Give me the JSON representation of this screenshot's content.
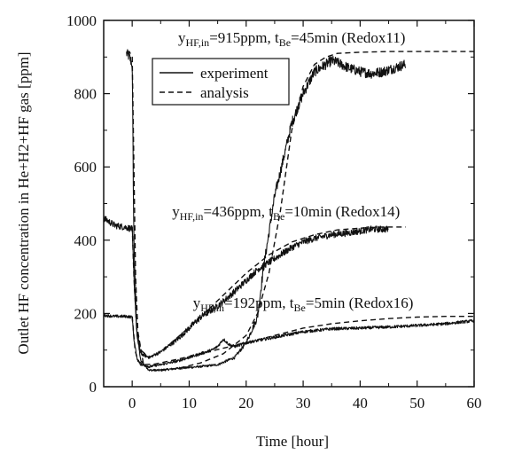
{
  "chart_data": {
    "type": "line",
    "title": "",
    "xlabel": "Time [hour]",
    "ylabel": "Outlet HF concentration in He+H2+HF gas [ppm]",
    "xlim": [
      -5,
      60
    ],
    "ylim": [
      0,
      1000
    ],
    "xticks": [
      0,
      10,
      20,
      30,
      40,
      50,
      60
    ],
    "yticks": [
      0,
      200,
      400,
      600,
      800,
      1000
    ],
    "grid": false,
    "legend": {
      "placement": "top-left",
      "entries": [
        {
          "label": "experiment",
          "style": "solid"
        },
        {
          "label": "analysis",
          "style": "dashed"
        }
      ]
    },
    "annotations": [
      {
        "pre": "y",
        "sub": "HF,in",
        "mid": "=915ppm, t",
        "sub2": "Be",
        "post": "=45min (Redox11)",
        "x": 28,
        "y": 940
      },
      {
        "pre": "y",
        "sub": "HF,in",
        "mid": "=436ppm, t",
        "sub2": "Be",
        "post": "=10min (Redox14)",
        "x": 27,
        "y": 465
      },
      {
        "pre": "y",
        "sub": "HF,in",
        "mid": "=192ppm, t",
        "sub2": "Be",
        "post": "=5min (Redox16)",
        "x": 30,
        "y": 215
      }
    ],
    "series": [
      {
        "run": "Redox11",
        "style": "solid",
        "noise": 14,
        "x": [
          -1,
          -0.5,
          0,
          0.3,
          0.8,
          1.5,
          3,
          5,
          8,
          12,
          15,
          18,
          20,
          22,
          23,
          25,
          28,
          30,
          32,
          34,
          35,
          36,
          38,
          40,
          42,
          44,
          46,
          48
        ],
        "y": [
          910,
          900,
          880,
          400,
          150,
          70,
          45,
          45,
          50,
          55,
          60,
          80,
          120,
          190,
          320,
          520,
          720,
          800,
          860,
          880,
          890,
          885,
          870,
          860,
          855,
          860,
          870,
          880
        ]
      },
      {
        "run": "Redox11",
        "style": "dashed",
        "x": [
          -1,
          -0.5,
          0,
          0.3,
          0.6,
          1,
          2,
          4,
          8,
          12,
          16,
          20,
          22,
          24,
          26,
          28,
          30,
          32,
          34,
          36,
          40,
          45,
          50,
          55,
          60
        ],
        "y": [
          915,
          915,
          900,
          600,
          300,
          150,
          60,
          45,
          50,
          65,
          90,
          140,
          200,
          310,
          480,
          700,
          820,
          880,
          900,
          910,
          913,
          915,
          915,
          915,
          915
        ]
      },
      {
        "run": "Redox14",
        "style": "solid",
        "noise": 9,
        "x": [
          -5,
          -3,
          -1,
          0,
          0.3,
          0.8,
          1.5,
          3,
          5,
          8,
          10,
          12,
          15,
          18,
          20,
          22,
          25,
          28,
          30,
          32,
          35,
          38,
          40,
          42,
          45
        ],
        "y": [
          460,
          440,
          435,
          430,
          300,
          150,
          90,
          80,
          95,
          130,
          160,
          190,
          220,
          260,
          290,
          320,
          350,
          380,
          395,
          405,
          415,
          420,
          425,
          430,
          430
        ]
      },
      {
        "run": "Redox14",
        "style": "dashed",
        "x": [
          0,
          0.3,
          0.8,
          1.5,
          3,
          5,
          8,
          12,
          16,
          20,
          24,
          28,
          32,
          36,
          40,
          44,
          48
        ],
        "y": [
          436,
          300,
          160,
          100,
          80,
          95,
          135,
          190,
          250,
          310,
          360,
          395,
          415,
          428,
          433,
          436,
          436
        ]
      },
      {
        "run": "Redox16",
        "style": "solid",
        "noise": 4,
        "x": [
          -5,
          -3,
          -1,
          0,
          0.3,
          0.8,
          1.5,
          3,
          5,
          8,
          10,
          12,
          14,
          15,
          16,
          17,
          18,
          20,
          25,
          30,
          35,
          40,
          45,
          50,
          55,
          60
        ],
        "y": [
          195,
          192,
          192,
          190,
          130,
          80,
          60,
          55,
          60,
          70,
          80,
          90,
          100,
          110,
          130,
          115,
          110,
          120,
          135,
          150,
          158,
          160,
          163,
          167,
          172,
          180
        ]
      },
      {
        "run": "Redox16",
        "style": "dashed",
        "x": [
          0,
          0.5,
          1,
          2,
          4,
          8,
          12,
          16,
          20,
          25,
          30,
          35,
          40,
          45,
          50,
          55,
          60
        ],
        "y": [
          192,
          100,
          70,
          60,
          62,
          75,
          90,
          105,
          120,
          140,
          160,
          172,
          180,
          186,
          190,
          192,
          192
        ]
      }
    ]
  }
}
